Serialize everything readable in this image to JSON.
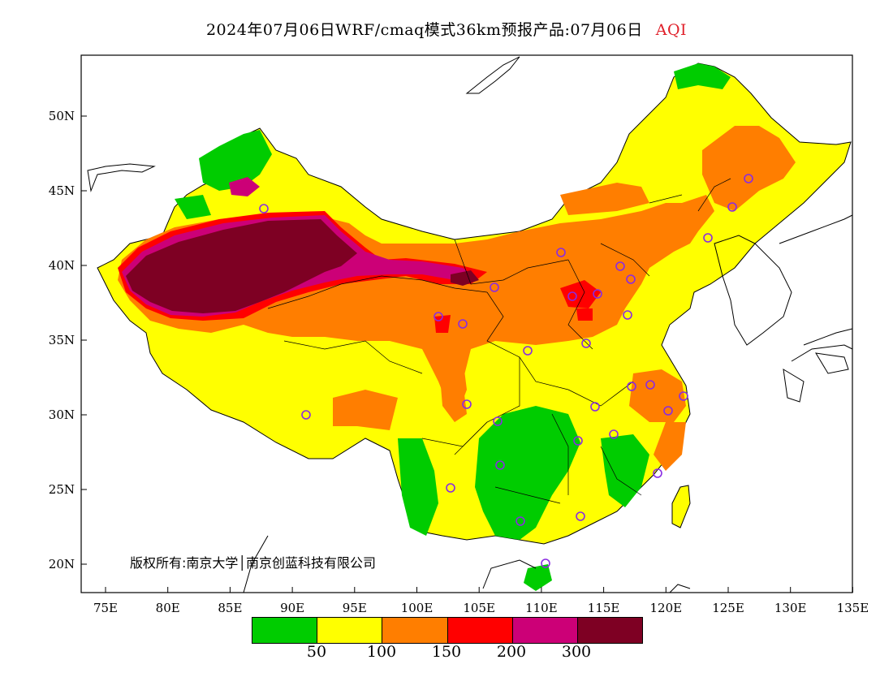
{
  "header": {
    "title": "2024年07月06日WRF/cmaq模式36km预报产品:07月06日",
    "variable": "AQI"
  },
  "axes": {
    "x_ticks": [
      "75E",
      "80E",
      "85E",
      "90E",
      "95E",
      "100E",
      "105E",
      "110E",
      "115E",
      "120E",
      "125E",
      "130E",
      "135E"
    ],
    "y_ticks": [
      "50N",
      "45N",
      "40N",
      "35N",
      "30N",
      "25N",
      "20N"
    ]
  },
  "copyright": "版权所有:南京大学│南京创蓝科技有限公司",
  "legend": {
    "colors": [
      "#00cc00",
      "#ffff00",
      "#ff7e00",
      "#ff0000",
      "#cc0077",
      "#7e0023"
    ],
    "labels": [
      "50",
      "100",
      "150",
      "200",
      "300"
    ]
  },
  "colors": {
    "good": "#00cc00",
    "moderate": "#ffff00",
    "usg": "#ff7e00",
    "unhealthy": "#ff0000",
    "very_unhealthy": "#cc0077",
    "hazardous": "#7e0023",
    "station_marker": "#8a2be2"
  }
}
